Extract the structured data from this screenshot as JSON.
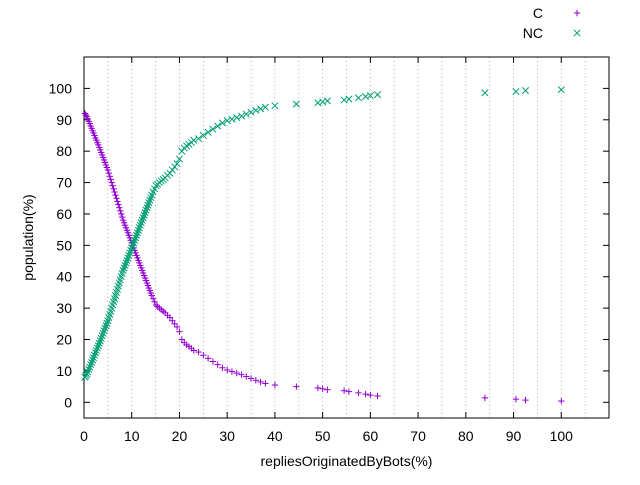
{
  "chart_data": {
    "type": "scatter",
    "title": "",
    "xlabel": "repliesOriginatedByBots(%)",
    "ylabel": "population(%)",
    "xlim": [
      0,
      110
    ],
    "ylim": [
      -5,
      110
    ],
    "x_ticks": [
      0,
      10,
      20,
      30,
      40,
      50,
      60,
      70,
      80,
      90,
      100
    ],
    "y_ticks": [
      0,
      10,
      20,
      30,
      40,
      50,
      60,
      70,
      80,
      90,
      100
    ],
    "x_gridlines": [
      5,
      10,
      15,
      20,
      25,
      30,
      35,
      40,
      45,
      50,
      55,
      60,
      65,
      70,
      75,
      80,
      85,
      90,
      95,
      100,
      105
    ],
    "grid": "vertical dotted",
    "legend_position": "top-right",
    "series": [
      {
        "name": "C",
        "marker": "+",
        "color": "#9400d3",
        "points": [
          [
            0.2,
            92
          ],
          [
            0.4,
            91.5
          ],
          [
            0.6,
            91
          ],
          [
            0.8,
            90.3
          ],
          [
            1,
            89.5
          ],
          [
            1.2,
            88.8
          ],
          [
            1.4,
            88
          ],
          [
            1.6,
            87.3
          ],
          [
            1.8,
            86.5
          ],
          [
            2,
            85.8
          ],
          [
            2.2,
            85
          ],
          [
            2.4,
            84.2
          ],
          [
            2.6,
            83.5
          ],
          [
            2.8,
            82.7
          ],
          [
            3,
            82
          ],
          [
            3.2,
            81.2
          ],
          [
            3.4,
            80.4
          ],
          [
            3.6,
            79.6
          ],
          [
            3.8,
            78.8
          ],
          [
            4,
            78
          ],
          [
            4.2,
            77.2
          ],
          [
            4.4,
            76.4
          ],
          [
            4.6,
            75.6
          ],
          [
            4.8,
            74.8
          ],
          [
            5,
            74
          ],
          [
            5.2,
            73
          ],
          [
            5.4,
            72
          ],
          [
            5.6,
            71
          ],
          [
            5.8,
            70
          ],
          [
            6,
            69
          ],
          [
            6.2,
            68
          ],
          [
            6.4,
            67
          ],
          [
            6.6,
            66
          ],
          [
            6.8,
            65
          ],
          [
            7,
            64
          ],
          [
            7.2,
            63
          ],
          [
            7.4,
            62
          ],
          [
            7.6,
            61
          ],
          [
            7.8,
            60
          ],
          [
            8,
            59
          ],
          [
            8.2,
            58
          ],
          [
            8.4,
            57.2
          ],
          [
            8.6,
            56.4
          ],
          [
            8.8,
            55.6
          ],
          [
            9,
            54.8
          ],
          [
            9.2,
            54
          ],
          [
            9.4,
            53.2
          ],
          [
            9.6,
            52.4
          ],
          [
            9.8,
            51.6
          ],
          [
            10,
            50.8
          ],
          [
            10.2,
            50
          ],
          [
            10.4,
            49.2
          ],
          [
            10.6,
            48.4
          ],
          [
            10.8,
            47.6
          ],
          [
            11,
            46.8
          ],
          [
            11.2,
            46
          ],
          [
            11.4,
            45.2
          ],
          [
            11.6,
            44.4
          ],
          [
            11.8,
            43.6
          ],
          [
            12,
            42.8
          ],
          [
            12.2,
            42
          ],
          [
            12.4,
            41.2
          ],
          [
            12.6,
            40.4
          ],
          [
            12.8,
            39.6
          ],
          [
            13,
            38.8
          ],
          [
            13.2,
            38
          ],
          [
            13.4,
            37.2
          ],
          [
            13.6,
            36.4
          ],
          [
            13.8,
            35.6
          ],
          [
            14,
            34.8
          ],
          [
            14.2,
            34
          ],
          [
            14.5,
            33
          ],
          [
            14.8,
            32
          ],
          [
            15.1,
            31
          ],
          [
            15.4,
            30.5
          ],
          [
            15.8,
            30
          ],
          [
            16.2,
            29.5
          ],
          [
            16.6,
            29
          ],
          [
            17,
            28.5
          ],
          [
            17.5,
            27.7
          ],
          [
            18,
            27
          ],
          [
            18.5,
            26
          ],
          [
            19,
            25
          ],
          [
            19.5,
            24
          ],
          [
            20,
            22.5
          ],
          [
            20.5,
            20
          ],
          [
            21,
            19
          ],
          [
            21.5,
            18.3
          ],
          [
            22,
            17.8
          ],
          [
            22.5,
            17.2
          ],
          [
            23,
            16.5
          ],
          [
            24,
            16
          ],
          [
            25,
            15
          ],
          [
            26,
            14
          ],
          [
            27,
            13
          ],
          [
            28,
            12
          ],
          [
            29,
            11
          ],
          [
            30,
            10.3
          ],
          [
            31,
            9.8
          ],
          [
            32,
            9.3
          ],
          [
            33,
            8.8
          ],
          [
            34,
            8.2
          ],
          [
            35,
            7.6
          ],
          [
            36,
            7
          ],
          [
            37,
            6.5
          ],
          [
            38,
            6
          ],
          [
            40,
            5.5
          ],
          [
            44.5,
            5
          ],
          [
            49,
            4.6
          ],
          [
            50,
            4.3
          ],
          [
            51,
            4
          ],
          [
            54.5,
            3.7
          ],
          [
            55.5,
            3.4
          ],
          [
            57.5,
            3
          ],
          [
            59,
            2.6
          ],
          [
            60,
            2.3
          ],
          [
            61.5,
            2
          ],
          [
            84,
            1.4
          ],
          [
            90.5,
            1
          ],
          [
            92.5,
            0.7
          ],
          [
            100,
            0.4
          ]
        ]
      },
      {
        "name": "NC",
        "marker": "x",
        "color": "#009e73",
        "points": [
          [
            0.2,
            8
          ],
          [
            0.4,
            8.5
          ],
          [
            0.6,
            9
          ],
          [
            0.8,
            9.7
          ],
          [
            1,
            10.5
          ],
          [
            1.2,
            11.2
          ],
          [
            1.4,
            12
          ],
          [
            1.6,
            12.7
          ],
          [
            1.8,
            13.5
          ],
          [
            2,
            14.2
          ],
          [
            2.2,
            15
          ],
          [
            2.4,
            15.8
          ],
          [
            2.6,
            16.5
          ],
          [
            2.8,
            17.3
          ],
          [
            3,
            18
          ],
          [
            3.2,
            18.8
          ],
          [
            3.4,
            19.6
          ],
          [
            3.6,
            20.4
          ],
          [
            3.8,
            21.2
          ],
          [
            4,
            22
          ],
          [
            4.2,
            22.8
          ],
          [
            4.4,
            23.6
          ],
          [
            4.6,
            24.4
          ],
          [
            4.8,
            25.2
          ],
          [
            5,
            26
          ],
          [
            5.2,
            27
          ],
          [
            5.4,
            28
          ],
          [
            5.6,
            29
          ],
          [
            5.8,
            30
          ],
          [
            6,
            31
          ],
          [
            6.2,
            32
          ],
          [
            6.4,
            33
          ],
          [
            6.6,
            34
          ],
          [
            6.8,
            35
          ],
          [
            7,
            36
          ],
          [
            7.2,
            37
          ],
          [
            7.4,
            38
          ],
          [
            7.6,
            39
          ],
          [
            7.8,
            40
          ],
          [
            8,
            41
          ],
          [
            8.2,
            42
          ],
          [
            8.4,
            42.8
          ],
          [
            8.6,
            43.6
          ],
          [
            8.8,
            44.4
          ],
          [
            9,
            45.2
          ],
          [
            9.2,
            46
          ],
          [
            9.4,
            46.8
          ],
          [
            9.6,
            47.6
          ],
          [
            9.8,
            48.4
          ],
          [
            10,
            49.2
          ],
          [
            10.2,
            50
          ],
          [
            10.4,
            50.8
          ],
          [
            10.6,
            51.6
          ],
          [
            10.8,
            52.4
          ],
          [
            11,
            53.2
          ],
          [
            11.2,
            54
          ],
          [
            11.4,
            54.8
          ],
          [
            11.6,
            55.6
          ],
          [
            11.8,
            56.4
          ],
          [
            12,
            57.2
          ],
          [
            12.2,
            58
          ],
          [
            12.4,
            58.8
          ],
          [
            12.6,
            59.6
          ],
          [
            12.8,
            60.4
          ],
          [
            13,
            61.2
          ],
          [
            13.2,
            62
          ],
          [
            13.4,
            62.8
          ],
          [
            13.6,
            63.6
          ],
          [
            13.8,
            64.4
          ],
          [
            14,
            65.2
          ],
          [
            14.2,
            66
          ],
          [
            14.5,
            67
          ],
          [
            14.8,
            68
          ],
          [
            15.1,
            69
          ],
          [
            15.4,
            69.5
          ],
          [
            15.8,
            70
          ],
          [
            16.2,
            70.5
          ],
          [
            16.6,
            71
          ],
          [
            17,
            71.5
          ],
          [
            17.5,
            72.3
          ],
          [
            18,
            73
          ],
          [
            18.5,
            74
          ],
          [
            19,
            75
          ],
          [
            19.5,
            76
          ],
          [
            20,
            77.5
          ],
          [
            20.5,
            80
          ],
          [
            21,
            81
          ],
          [
            21.5,
            81.7
          ],
          [
            22,
            82.2
          ],
          [
            22.5,
            82.8
          ],
          [
            23,
            83.5
          ],
          [
            24,
            84
          ],
          [
            25,
            85
          ],
          [
            26,
            86
          ],
          [
            27,
            87
          ],
          [
            28,
            88
          ],
          [
            29,
            89
          ],
          [
            30,
            89.7
          ],
          [
            31,
            90.2
          ],
          [
            32,
            90.7
          ],
          [
            33,
            91.2
          ],
          [
            34,
            91.8
          ],
          [
            35,
            92.4
          ],
          [
            36,
            93
          ],
          [
            37,
            93.5
          ],
          [
            38,
            94
          ],
          [
            40,
            94.5
          ],
          [
            44.5,
            95
          ],
          [
            49,
            95.4
          ],
          [
            50,
            95.7
          ],
          [
            51,
            96
          ],
          [
            54.5,
            96.3
          ],
          [
            55.5,
            96.6
          ],
          [
            57.5,
            97
          ],
          [
            59,
            97.4
          ],
          [
            60,
            97.7
          ],
          [
            61.5,
            98
          ],
          [
            84,
            98.6
          ],
          [
            90.5,
            99
          ],
          [
            92.5,
            99.3
          ],
          [
            100,
            99.6
          ]
        ]
      }
    ]
  }
}
